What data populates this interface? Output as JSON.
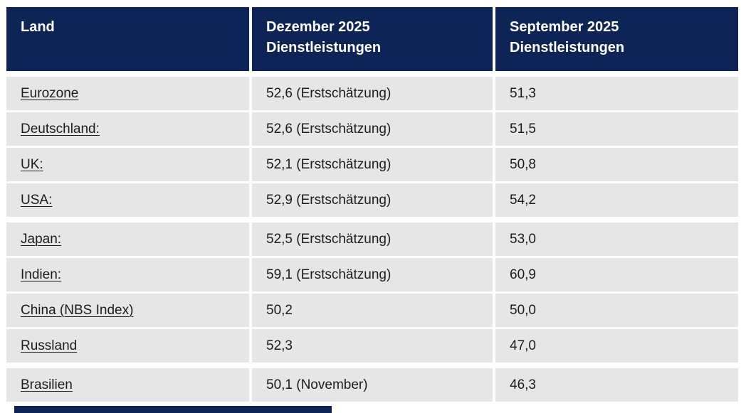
{
  "colors": {
    "header_bg": "#0d2456",
    "header_text": "#ffffff",
    "row_bg": "#e6e6e6",
    "cell_text": "#1c1c1c",
    "page_bg": "#ffffff"
  },
  "table": {
    "header": {
      "col_land": "Land",
      "col_dec": "Dezember 2025\nDienstleistungen",
      "col_sep": "September 2025\nDienstleistungen"
    },
    "rows": [
      {
        "land": "Eurozone",
        "dec": "52,6 (Erstschätzung)",
        "sep": "51,3"
      },
      {
        "land": "Deutschland:",
        "dec": "52,6 (Erstschätzung)",
        "sep": "51,5"
      },
      {
        "land": "UK:",
        "dec": "52,1 (Erstschätzung)",
        "sep": "50,8"
      },
      {
        "land": "USA:",
        "dec": "52,9 (Erstschätzung)",
        "sep": "54,2"
      },
      {
        "land": "Japan:",
        "dec": "52,5 (Erstschätzung)",
        "sep": "53,0"
      },
      {
        "land": "Indien:",
        "dec": "59,1 (Erstschätzung)",
        "sep": "60,9"
      },
      {
        "land": "China (NBS Index)",
        "dec": "50,2",
        "sep": "50,0"
      },
      {
        "land": "Russland",
        "dec": "52,3",
        "sep": "47,0"
      },
      {
        "land": "Brasilien",
        "dec": "50,1 (November)",
        "sep": "46,3"
      }
    ]
  }
}
